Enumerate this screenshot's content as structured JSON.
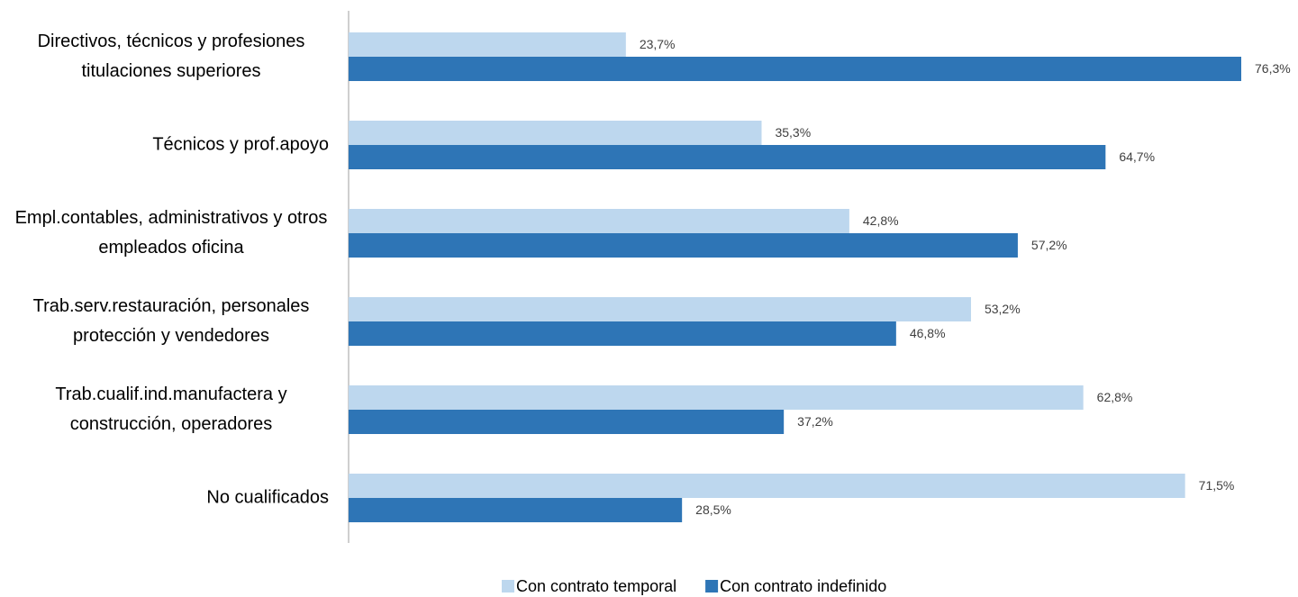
{
  "chart_data": {
    "type": "bar",
    "orientation": "horizontal",
    "categories": [
      "Directivos, técnicos y profesiones titulaciones superiores",
      "Técnicos y prof.apoyo",
      "Empl.contables, administrativos y otros empleados oficina",
      "Trab.serv.restauración, personales protección y vendedores",
      "Trab.cualif.ind.manufactera y construcción, operadores",
      "No cualificados"
    ],
    "series": [
      {
        "name": "Con contrato temporal",
        "color": "#bdd7ee",
        "values": [
          23.7,
          35.3,
          42.8,
          53.2,
          62.8,
          71.5
        ],
        "value_labels": [
          "23,7%",
          "35,3%",
          "42,8%",
          "53,2%",
          "62,8%",
          "71,5%"
        ]
      },
      {
        "name": "Con contrato indefinido",
        "color": "#2e75b6",
        "values": [
          76.3,
          64.7,
          57.2,
          46.8,
          37.2,
          28.5
        ],
        "value_labels": [
          "76,3%",
          "64,7%",
          "57,2%",
          "46,8%",
          "37,2%",
          "28,5%"
        ]
      }
    ],
    "legend": "bottom"
  }
}
